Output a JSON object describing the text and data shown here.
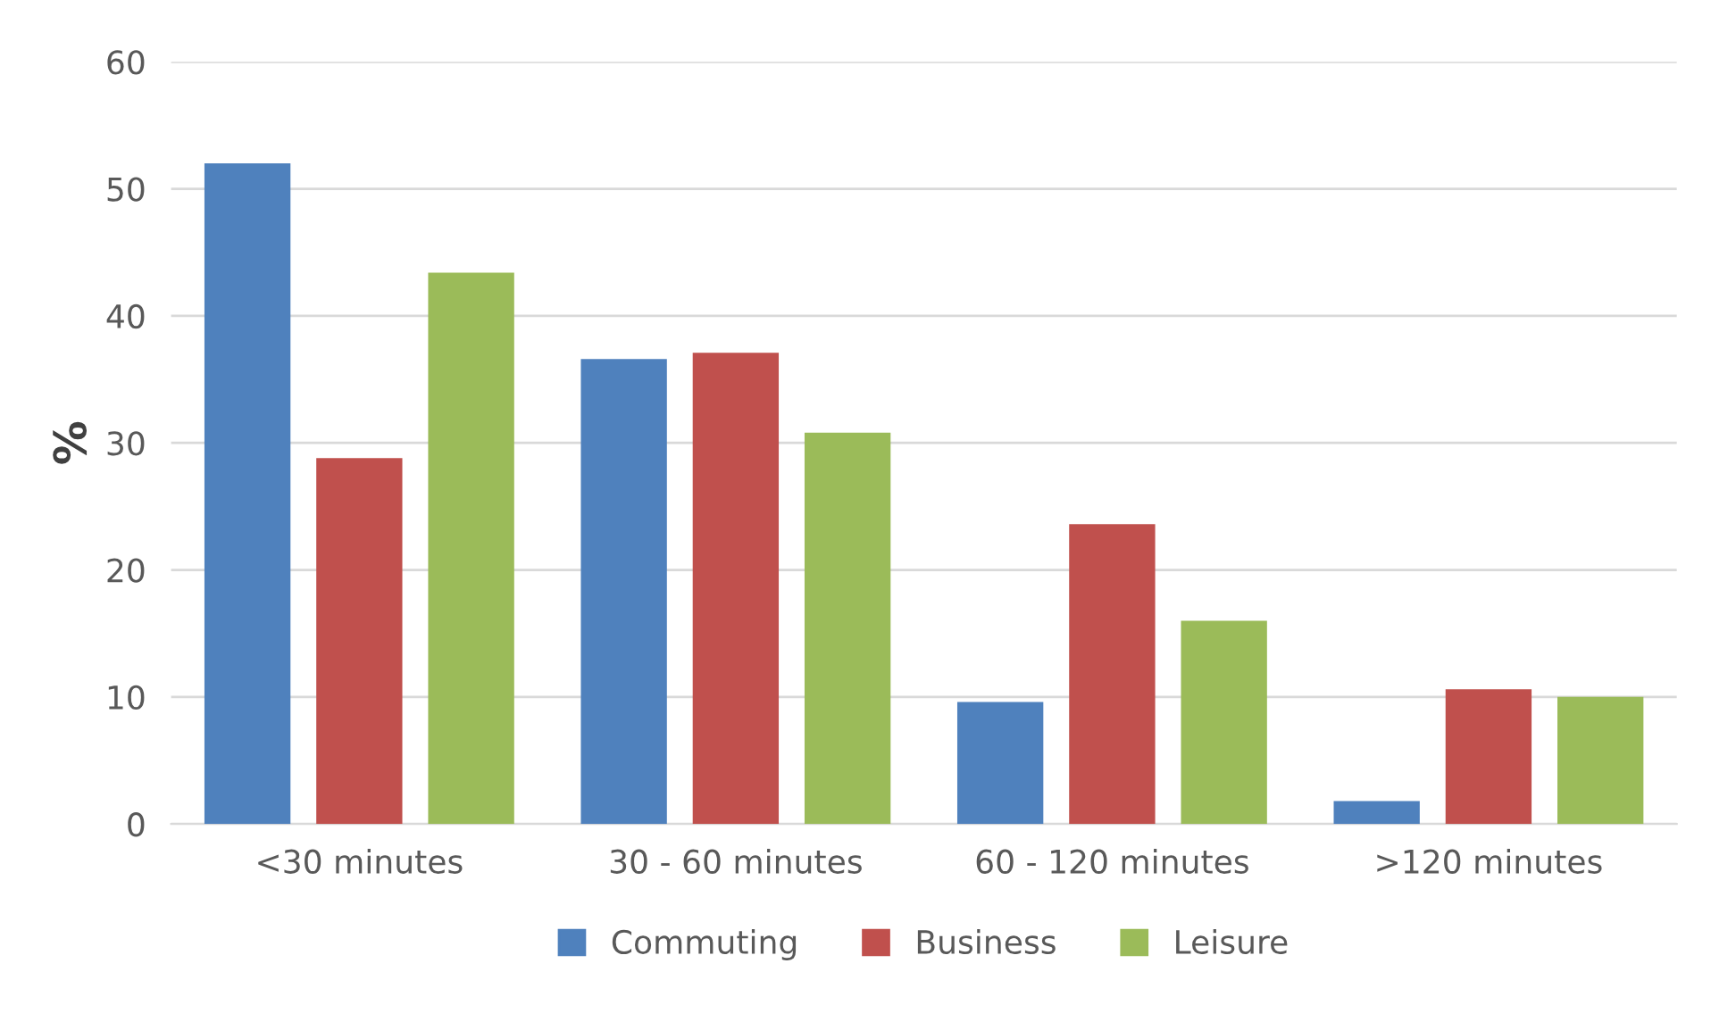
{
  "chart_data": {
    "type": "bar",
    "ylabel": "%",
    "categories": [
      "<30 minutes",
      "30 - 60 minutes",
      "60 - 120 minutes",
      ">120 minutes"
    ],
    "series": [
      {
        "name": "Commuting",
        "color": "#4f81bd",
        "values": [
          52.0,
          36.6,
          9.6,
          1.8
        ]
      },
      {
        "name": "Business",
        "color": "#c0504d",
        "values": [
          28.8,
          37.1,
          23.6,
          10.6
        ]
      },
      {
        "name": "Leisure",
        "color": "#9bbb59",
        "values": [
          43.4,
          30.8,
          16.0,
          10.0
        ]
      }
    ],
    "ylim": [
      0,
      60
    ],
    "yticks": [
      0,
      10,
      20,
      30,
      40,
      50,
      60
    ],
    "grid": "y",
    "legend": "bottom"
  }
}
